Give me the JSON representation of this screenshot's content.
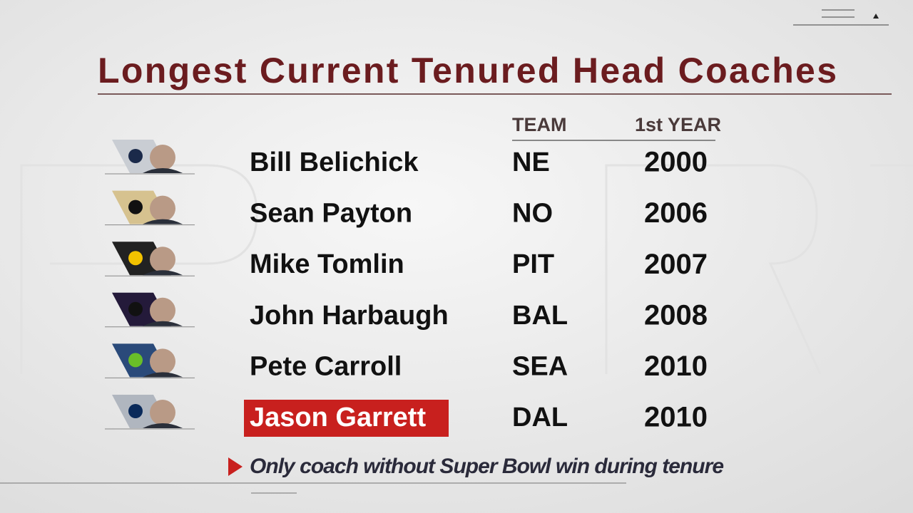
{
  "title": "Longest Current Tenured Head Coaches",
  "table": {
    "columns": [
      "TEAM",
      "1st YEAR"
    ],
    "rows": [
      {
        "name": "Bill Belichick",
        "team": "NE",
        "year": 2000,
        "highlighted": false
      },
      {
        "name": "Sean Payton",
        "team": "NO",
        "year": 2006,
        "highlighted": false
      },
      {
        "name": "Mike Tomlin",
        "team": "PIT",
        "year": 2007,
        "highlighted": false
      },
      {
        "name": "John Harbaugh",
        "team": "BAL",
        "year": 2008,
        "highlighted": false
      },
      {
        "name": "Pete Carroll",
        "team": "SEA",
        "year": 2010,
        "highlighted": false
      },
      {
        "name": "Jason Garrett",
        "team": "DAL",
        "year": 2010,
        "highlighted": true
      }
    ]
  },
  "footnote": "Only coach without Super Bowl win during tenure"
}
